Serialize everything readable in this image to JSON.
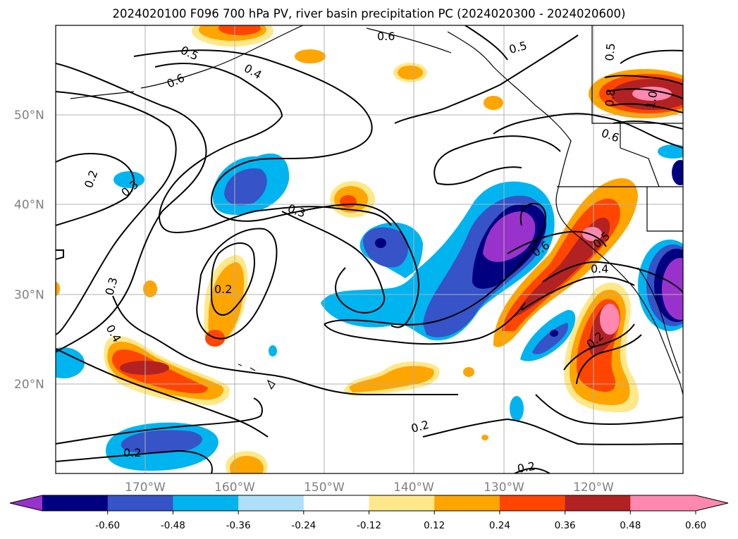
{
  "title": "2024020100 F096 700 hPa PV, river basin precipitation PC (2024020300 - 2024020600)",
  "lat_labels": [
    "50°N",
    "40°N",
    "30°N",
    "20°N"
  ],
  "lon_labels": [
    "170°W",
    "160°W",
    "150°W",
    "140°W",
    "130°W",
    "120°W"
  ],
  "contour_labels": [
    "0.6",
    "0.5",
    "0.4",
    "0.6",
    "0.5",
    "0.5",
    "0.8",
    "1.0",
    "0.6",
    "0.2",
    "0.3",
    "0.3",
    "0.5",
    "0.6",
    "0.4",
    "0.3",
    "0.2",
    "0.4",
    "0.2",
    "0.2",
    "0.2",
    "0.2"
  ],
  "colorbar": {
    "tick_labels": [
      "-0.60",
      "-0.48",
      "-0.36",
      "-0.24",
      "-0.12",
      "0.12",
      "0.24",
      "0.36",
      "0.48",
      "0.60"
    ],
    "colors": [
      "#9932cc",
      "#000080",
      "#3653c8",
      "#00b4f0",
      "#aee0fa",
      "#ffffff",
      "#ffe88a",
      "#ffa500",
      "#ff4500",
      "#b22222",
      "#ff88b0",
      "#ff88b0"
    ]
  },
  "colors": {
    "grid": "#b0b0b0",
    "tick_label": "#808080",
    "contour": "#000000"
  }
}
